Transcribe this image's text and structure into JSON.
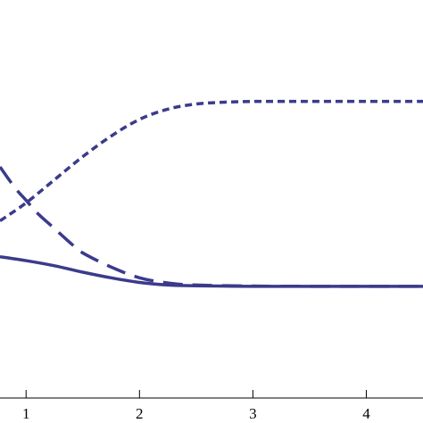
{
  "chart_data": {
    "type": "line",
    "title": "",
    "xlabel": "",
    "ylabel": "",
    "xlim": [
      0.77,
      4.5
    ],
    "ylim": [
      0,
      1.55
    ],
    "grid": false,
    "legend": "none",
    "x_ticks": [
      1,
      2,
      3,
      4
    ],
    "x_tick_labels": [
      "1",
      "2",
      "3",
      "4"
    ],
    "line_color": "#3b3b8c",
    "series": [
      {
        "style": "solid",
        "x": [
          0.77,
          1.0,
          1.25,
          1.5,
          1.75,
          2.0,
          2.25,
          2.5,
          3.0,
          3.5,
          4.0,
          4.5
        ],
        "y": [
          0.55,
          0.535,
          0.515,
          0.49,
          0.468,
          0.45,
          0.44,
          0.437,
          0.435,
          0.435,
          0.435,
          0.435
        ]
      },
      {
        "style": "dashed",
        "x": [
          0.77,
          0.9,
          1.0,
          1.1,
          1.25,
          1.4,
          1.5,
          1.75,
          2.0,
          2.25,
          2.5,
          3.0,
          3.5,
          4.0,
          4.5
        ],
        "y": [
          0.9,
          0.82,
          0.77,
          0.72,
          0.66,
          0.6,
          0.565,
          0.51,
          0.468,
          0.448,
          0.44,
          0.436,
          0.435,
          0.435,
          0.435
        ]
      },
      {
        "style": "dotted",
        "x": [
          0.77,
          1.0,
          1.25,
          1.5,
          1.75,
          2.0,
          2.25,
          2.5,
          2.75,
          3.0,
          3.25,
          3.5,
          4.0,
          4.5
        ],
        "y": [
          0.69,
          0.76,
          0.85,
          0.94,
          1.02,
          1.085,
          1.125,
          1.145,
          1.152,
          1.155,
          1.155,
          1.155,
          1.155,
          1.155
        ]
      }
    ]
  }
}
